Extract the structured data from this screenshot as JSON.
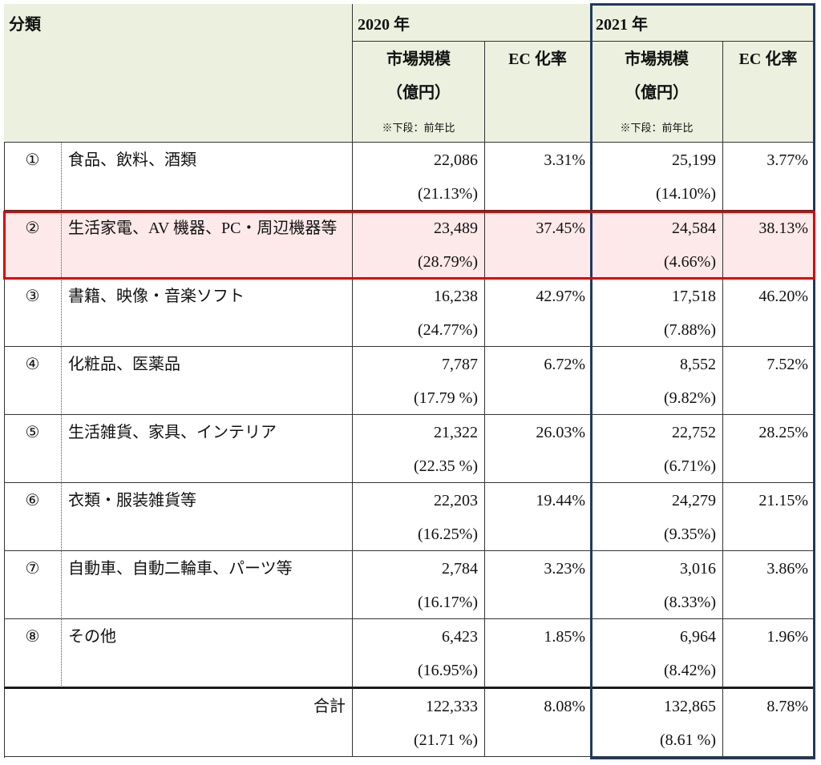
{
  "header": {
    "category": "分類",
    "year_2020": "2020 年",
    "year_2021": "2021 年",
    "market_size": "市場規模",
    "unit": "（億円）",
    "note": "※下段：前年比",
    "ec_rate": "EC 化率"
  },
  "rows": [
    {
      "no": "①",
      "category": "食品、飲料、酒類",
      "y2020": {
        "market": "22,086",
        "yoy": "(21.13%)",
        "ec": "3.31%"
      },
      "y2021": {
        "market": "25,199",
        "yoy": "(14.10%)",
        "ec": "3.77%"
      }
    },
    {
      "no": "②",
      "category": "生活家電、AV 機器、PC・周辺機器等",
      "y2020": {
        "market": "23,489",
        "yoy": "(28.79%)",
        "ec": "37.45%"
      },
      "y2021": {
        "market": "24,584",
        "yoy": "(4.66%)",
        "ec": "38.13%"
      }
    },
    {
      "no": "③",
      "category": "書籍、映像・音楽ソフト",
      "y2020": {
        "market": "16,238",
        "yoy": "(24.77%)",
        "ec": "42.97%"
      },
      "y2021": {
        "market": "17,518",
        "yoy": "(7.88%)",
        "ec": "46.20%"
      }
    },
    {
      "no": "④",
      "category": "化粧品、医薬品",
      "y2020": {
        "market": "7,787",
        "yoy": "(17.79 %)",
        "ec": "6.72%"
      },
      "y2021": {
        "market": "8,552",
        "yoy": "(9.82%)",
        "ec": "7.52%"
      }
    },
    {
      "no": "⑤",
      "category": "生活雑貨、家具、インテリア",
      "y2020": {
        "market": "21,322",
        "yoy": "(22.35 %)",
        "ec": "26.03%"
      },
      "y2021": {
        "market": "22,752",
        "yoy": "(6.71%)",
        "ec": "28.25%"
      }
    },
    {
      "no": "⑥",
      "category": "衣類・服装雑貨等",
      "y2020": {
        "market": "22,203",
        "yoy": "(16.25%)",
        "ec": "19.44%"
      },
      "y2021": {
        "market": "24,279",
        "yoy": "(9.35%)",
        "ec": "21.15%"
      }
    },
    {
      "no": "⑦",
      "category": "自動車、自動二輪車、パーツ等",
      "y2020": {
        "market": "2,784",
        "yoy": "(16.17%)",
        "ec": "3.23%"
      },
      "y2021": {
        "market": "3,016",
        "yoy": "(8.33%)",
        "ec": "3.86%"
      }
    },
    {
      "no": "⑧",
      "category": "その他",
      "y2020": {
        "market": "6,423",
        "yoy": "(16.95%)",
        "ec": "1.85%"
      },
      "y2021": {
        "market": "6,964",
        "yoy": "(8.42%)",
        "ec": "1.96%"
      }
    }
  ],
  "total": {
    "label": "合計",
    "y2020": {
      "market": "122,333",
      "yoy": "(21.71 %)",
      "ec": "8.08%"
    },
    "y2021": {
      "market": "132,865",
      "yoy": "(8.61 %)",
      "ec": "8.78%"
    }
  }
}
